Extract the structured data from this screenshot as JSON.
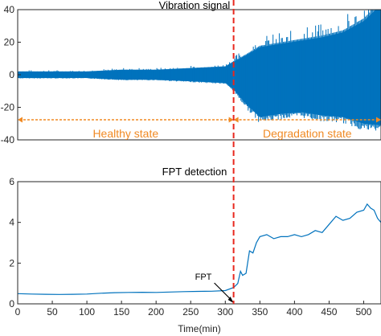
{
  "colors": {
    "series": "#0072BD",
    "divider": "#E8281E",
    "state": "#F08A24",
    "axis": "#262626"
  },
  "chart_data": [
    {
      "type": "line",
      "title": "Vibration signal",
      "ylim": [
        -40,
        40
      ],
      "yticks": [
        40,
        20,
        0,
        -20,
        -40
      ],
      "xlim": [
        0,
        525
      ],
      "fpt_x": 312,
      "states": [
        {
          "label": "Healthy state",
          "from": 0,
          "to": 312
        },
        {
          "label": "Degradation state",
          "from": 312,
          "to": 525
        }
      ],
      "envelope": {
        "x": [
          0,
          50,
          100,
          150,
          200,
          250,
          300,
          312,
          330,
          350,
          380,
          410,
          440,
          470,
          500,
          525
        ],
        "upper": [
          2,
          2,
          2,
          3,
          3,
          4,
          5,
          8,
          12,
          17,
          19,
          21,
          23,
          26,
          33,
          43
        ],
        "lower": [
          -2,
          -2,
          -2,
          -3,
          -3,
          -4,
          -5,
          -9,
          -18,
          -26,
          -24,
          -23,
          -25,
          -26,
          -30,
          -31
        ]
      },
      "grid": false,
      "legend": "none"
    },
    {
      "type": "line",
      "title": "FPT detection",
      "xlabel": "Time(min)",
      "ylabel": "",
      "xlim": [
        0,
        525
      ],
      "ylim": [
        0,
        6
      ],
      "xticks": [
        0,
        50,
        100,
        150,
        200,
        250,
        300,
        350,
        400,
        450,
        500
      ],
      "yticks": [
        0,
        2,
        4,
        6
      ],
      "annotation": {
        "text": "FPT",
        "x": 312,
        "y": 0
      },
      "series": [
        {
          "x": [
            0,
            20,
            40,
            60,
            80,
            100,
            120,
            140,
            160,
            180,
            200,
            220,
            240,
            260,
            280,
            300,
            312,
            318,
            322,
            325,
            330,
            335,
            340,
            345,
            350,
            360,
            370,
            380,
            390,
            400,
            410,
            420,
            430,
            440,
            450,
            460,
            470,
            480,
            490,
            500,
            505,
            510,
            515,
            520,
            525
          ],
          "y": [
            0.5,
            0.48,
            0.47,
            0.46,
            0.47,
            0.48,
            0.52,
            0.55,
            0.56,
            0.57,
            0.56,
            0.58,
            0.6,
            0.61,
            0.62,
            0.65,
            0.8,
            1.0,
            1.6,
            1.4,
            1.5,
            2.6,
            2.5,
            3.0,
            3.3,
            3.4,
            3.2,
            3.3,
            3.3,
            3.4,
            3.3,
            3.4,
            3.6,
            3.5,
            3.9,
            4.3,
            4.1,
            4.2,
            4.5,
            4.6,
            4.9,
            4.7,
            4.6,
            4.2,
            4.0
          ]
        }
      ],
      "grid": false,
      "legend": "none"
    }
  ]
}
